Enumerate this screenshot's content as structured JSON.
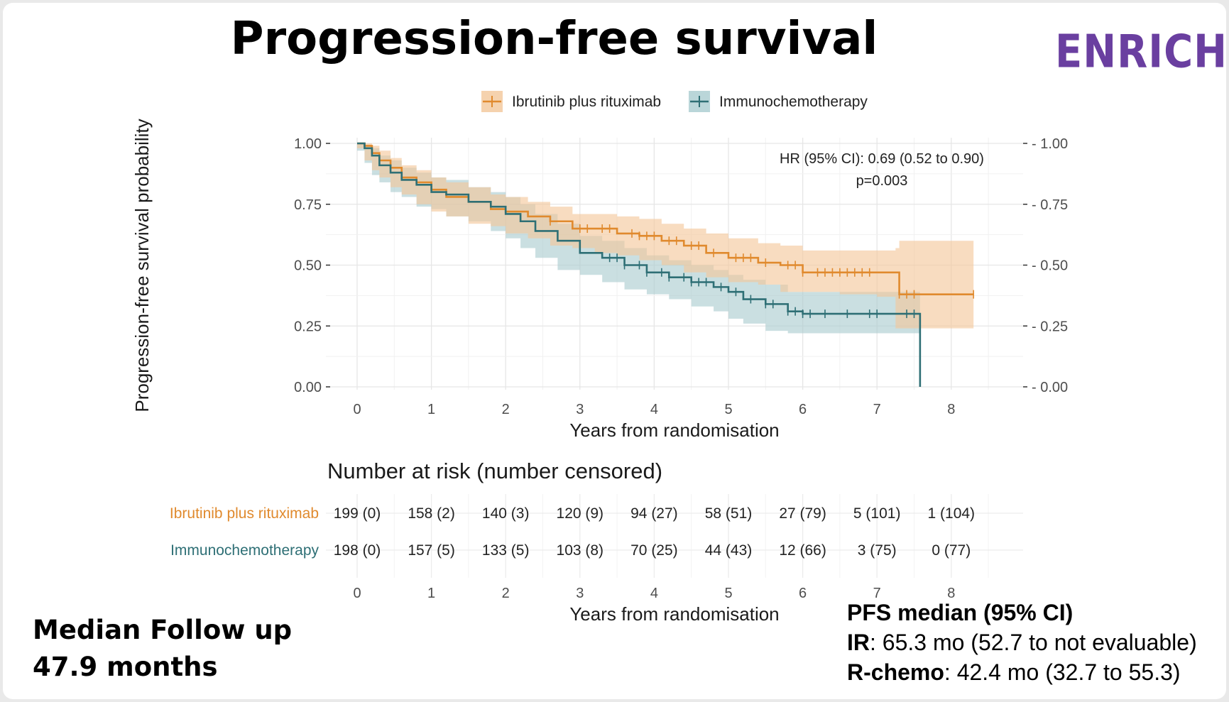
{
  "slide": {
    "title": "Progression-free survival",
    "logo": "ENRICH",
    "follow_up": {
      "line1": "Median Follow up",
      "line2": "47.9 months"
    },
    "pfs_median": {
      "heading": "PFS median (95% CI)",
      "ir_label": "IR",
      "ir_value": ": 65.3 mo (52.7 to not evaluable)",
      "rchemo_label": "R-chemo",
      "rchemo_value": ": 42.4 mo (32.7 to 55.3)"
    }
  },
  "chart_data": {
    "type": "line",
    "title": "",
    "xlabel": "Years from randomisation",
    "ylabel": "Progression-free survival probability",
    "xlim": [
      -0.3,
      8.8
    ],
    "ylim": [
      0,
      1
    ],
    "x_ticks": [
      0,
      1,
      2,
      3,
      4,
      5,
      6,
      7,
      8
    ],
    "y_ticks": [
      0,
      0.25,
      0.5,
      0.75,
      1
    ],
    "y_tick_labels": [
      "0.00",
      "0.25",
      "0.50",
      "0.75",
      "1.00"
    ],
    "grid": true,
    "legend_position": "top",
    "colors": {
      "ibrutinib": "#e08a2e",
      "immuno": "#2e6f75",
      "ibrutinib_band": "#f3c79a",
      "immuno_band": "#a9cccf"
    },
    "annotations": {
      "hr": "HR (95% CI): 0.69 (0.52 to 0.90)",
      "p": "p=0.003"
    },
    "series": [
      {
        "name": "Ibrutinib plus rituximab",
        "color": "#e08a2e",
        "x": [
          0,
          0.1,
          0.2,
          0.3,
          0.45,
          0.6,
          0.8,
          1.0,
          1.2,
          1.5,
          1.8,
          2.0,
          2.3,
          2.6,
          2.9,
          3.2,
          3.5,
          3.8,
          4.1,
          4.4,
          4.7,
          5.0,
          5.4,
          5.7,
          6.0,
          6.5,
          7.0,
          7.25,
          7.3,
          7.6,
          8.3
        ],
        "y": [
          1.0,
          0.99,
          0.96,
          0.93,
          0.9,
          0.86,
          0.84,
          0.81,
          0.78,
          0.76,
          0.73,
          0.72,
          0.7,
          0.68,
          0.65,
          0.65,
          0.63,
          0.62,
          0.6,
          0.58,
          0.55,
          0.53,
          0.51,
          0.5,
          0.47,
          0.47,
          0.47,
          0.47,
          0.38,
          0.38,
          0.38
        ],
        "lower": [
          1.0,
          0.98,
          0.93,
          0.89,
          0.86,
          0.82,
          0.79,
          0.75,
          0.72,
          0.7,
          0.67,
          0.66,
          0.63,
          0.61,
          0.58,
          0.57,
          0.55,
          0.54,
          0.52,
          0.5,
          0.47,
          0.45,
          0.43,
          0.42,
          0.39,
          0.39,
          0.38,
          0.37,
          0.24,
          0.24,
          0.24
        ],
        "upper": [
          1.0,
          1.0,
          0.99,
          0.97,
          0.94,
          0.91,
          0.89,
          0.86,
          0.84,
          0.82,
          0.79,
          0.78,
          0.76,
          0.74,
          0.71,
          0.71,
          0.7,
          0.69,
          0.67,
          0.65,
          0.63,
          0.61,
          0.59,
          0.58,
          0.56,
          0.56,
          0.56,
          0.57,
          0.6,
          0.6,
          0.6
        ],
        "censor_x": [
          2.6,
          3.0,
          3.1,
          3.3,
          3.4,
          3.7,
          3.8,
          3.9,
          4.0,
          4.2,
          4.3,
          4.5,
          4.6,
          4.8,
          5.1,
          5.2,
          5.3,
          5.5,
          5.8,
          5.9,
          6.0,
          6.2,
          6.3,
          6.4,
          6.5,
          6.6,
          6.7,
          6.8,
          6.9,
          7.3,
          7.4,
          7.5,
          8.3
        ]
      },
      {
        "name": "Immunochemotherapy",
        "color": "#2e6f75",
        "x": [
          0,
          0.1,
          0.2,
          0.3,
          0.45,
          0.6,
          0.8,
          1.0,
          1.2,
          1.5,
          1.8,
          2.0,
          2.2,
          2.4,
          2.7,
          3.0,
          3.3,
          3.6,
          3.9,
          4.2,
          4.5,
          4.8,
          5.0,
          5.2,
          5.5,
          5.8,
          6.0,
          6.5,
          7.0,
          7.4,
          7.58
        ],
        "y": [
          1.0,
          0.98,
          0.95,
          0.91,
          0.88,
          0.85,
          0.83,
          0.8,
          0.79,
          0.76,
          0.74,
          0.71,
          0.68,
          0.64,
          0.6,
          0.55,
          0.53,
          0.5,
          0.47,
          0.45,
          0.43,
          0.41,
          0.39,
          0.36,
          0.34,
          0.31,
          0.3,
          0.3,
          0.3,
          0.3,
          0.0
        ],
        "lower": [
          1.0,
          0.97,
          0.92,
          0.87,
          0.84,
          0.8,
          0.78,
          0.74,
          0.73,
          0.7,
          0.68,
          0.64,
          0.61,
          0.57,
          0.53,
          0.48,
          0.46,
          0.43,
          0.4,
          0.38,
          0.36,
          0.33,
          0.31,
          0.28,
          0.26,
          0.23,
          0.22,
          0.22,
          0.22,
          0.22,
          0.22
        ],
        "upper": [
          1.0,
          0.99,
          0.98,
          0.95,
          0.93,
          0.9,
          0.88,
          0.86,
          0.85,
          0.82,
          0.8,
          0.78,
          0.75,
          0.71,
          0.67,
          0.62,
          0.6,
          0.57,
          0.54,
          0.52,
          0.5,
          0.48,
          0.46,
          0.44,
          0.42,
          0.39,
          0.39,
          0.39,
          0.39,
          0.39,
          0.39
        ],
        "censor_x": [
          3.4,
          3.5,
          3.6,
          3.8,
          3.9,
          4.1,
          4.2,
          4.4,
          4.5,
          4.6,
          4.7,
          4.9,
          5.1,
          5.3,
          5.5,
          5.6,
          5.8,
          5.9,
          6.0,
          6.1,
          6.3,
          6.6,
          6.9,
          7.0,
          7.4,
          7.5
        ]
      }
    ],
    "risk_table": {
      "title": "Number at risk (number censored)",
      "xlabel": "Years from randomisation",
      "rows": [
        {
          "name": "Ibrutinib plus rituximab",
          "values": [
            "199 (0)",
            "158 (2)",
            "140 (3)",
            "120 (9)",
            "94 (27)",
            "58 (51)",
            "27 (79)",
            "5 (101)",
            "1 (104)"
          ]
        },
        {
          "name": "Immunochemotherapy",
          "values": [
            "198 (0)",
            "157 (5)",
            "133 (5)",
            "103 (8)",
            "70 (25)",
            "44 (43)",
            "12 (66)",
            "3 (75)",
            "0 (77)"
          ]
        }
      ]
    }
  }
}
